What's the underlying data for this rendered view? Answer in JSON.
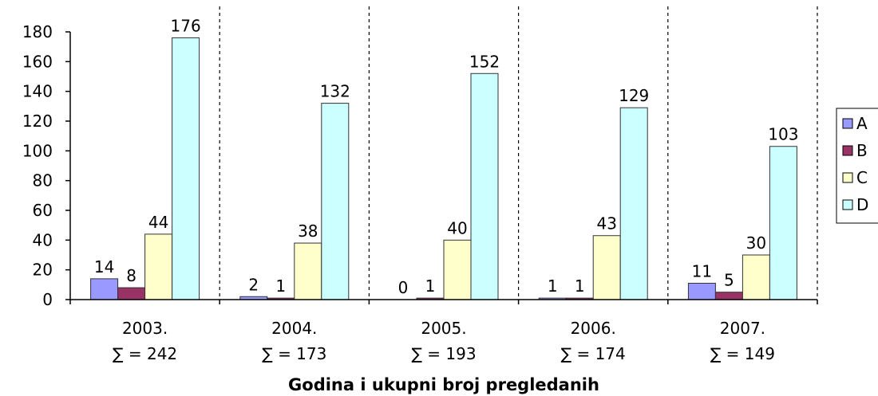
{
  "chart_data": {
    "type": "bar",
    "x_label": "Godina i ukupni broj pregledanih",
    "categories": [
      "2003.",
      "2004.",
      "2005.",
      "2006.",
      "2007."
    ],
    "category_sums": [
      "∑ = 242",
      "∑ = 173",
      "∑ = 193",
      "∑ = 174",
      "∑ = 149"
    ],
    "series": [
      {
        "name": "A",
        "color": "#9999ff",
        "values": [
          14,
          2,
          0,
          1,
          11
        ]
      },
      {
        "name": "B",
        "color": "#993366",
        "values": [
          8,
          1,
          1,
          1,
          5
        ]
      },
      {
        "name": "C",
        "color": "#ffffcc",
        "values": [
          44,
          38,
          40,
          43,
          30
        ]
      },
      {
        "name": "D",
        "color": "#ccffff",
        "values": [
          176,
          132,
          152,
          129,
          103
        ]
      }
    ],
    "ylim": [
      0,
      180
    ],
    "yticks": [
      0,
      20,
      40,
      60,
      80,
      100,
      120,
      140,
      160,
      180
    ],
    "legend": "right"
  }
}
